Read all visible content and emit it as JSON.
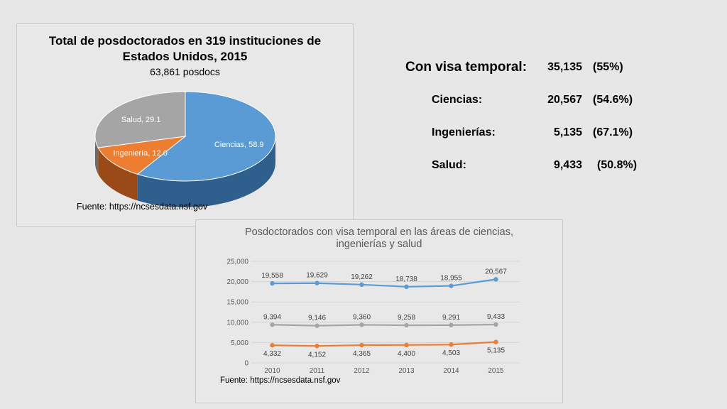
{
  "pie_panel": {
    "title_line1": "Total de posdoctorados en 319 instituciones de",
    "title_line2": "Estados Unidos, 2015",
    "subtitle": "63,861 posdocs",
    "source": "Fuente: https://ncsesdata.nsf.gov"
  },
  "line_panel": {
    "title_line1": "Posdoctorados con visa temporal en las áreas de ciencias,",
    "title_line2": "ingenierías y salud",
    "source": "Fuente: https://ncsesdata.nsf.gov"
  },
  "stats": {
    "main_label": "Con visa temporal:",
    "main_value": "35,135",
    "main_pct": "(55%)",
    "rows": [
      {
        "label": "Ciencias:",
        "value": "20,567",
        "pct": "(54.6%)"
      },
      {
        "label": "Ingenierías:",
        "value": "5,135",
        "pct": "(67.1%)"
      },
      {
        "label": "Salud:",
        "value": "9,433",
        "pct": "(50.8%)"
      }
    ]
  },
  "chart_data": [
    {
      "type": "pie",
      "title": "Total de posdoctorados en 319 instituciones de Estados Unidos, 2015",
      "subtitle": "63,861 posdocs",
      "slices": [
        {
          "name": "Ciencias",
          "value": 58.9,
          "label": "Ciencias, 58.9",
          "color": "#5b9bd5",
          "dark": "#2f5f8d"
        },
        {
          "name": "Ingeniería",
          "value": 12.0,
          "label": "Ingeniería, 12.0",
          "color": "#ed7d31",
          "dark": "#9a4a17"
        },
        {
          "name": "Salud",
          "value": 29.1,
          "label": "Salud, 29.1",
          "color": "#a5a5a5",
          "dark": "#6b6b6b"
        }
      ]
    },
    {
      "type": "line",
      "title": "Posdoctorados con visa temporal en las áreas de ciencias, ingenierías y salud",
      "x": [
        2010,
        2011,
        2012,
        2013,
        2014,
        2015
      ],
      "ylim": [
        0,
        25000
      ],
      "yticks": [
        0,
        5000,
        10000,
        15000,
        20000,
        25000
      ],
      "ytick_labels": [
        "0",
        "5,000",
        "10,000",
        "15,000",
        "20,000",
        "25,000"
      ],
      "grid": true,
      "series": [
        {
          "values": [
            19558,
            19629,
            19262,
            18738,
            18955,
            20567
          ],
          "labels": [
            "19,558",
            "19,629",
            "19,262",
            "18,738",
            "18,955",
            "20,567"
          ],
          "label_position": "above",
          "color": "#5b9bd5"
        },
        {
          "values": [
            9394,
            9146,
            9360,
            9258,
            9291,
            9433
          ],
          "labels": [
            "9,394",
            "9,146",
            "9,360",
            "9,258",
            "9,291",
            "9,433"
          ],
          "label_position": "above",
          "color": "#a5a5a5"
        },
        {
          "values": [
            4332,
            4152,
            4365,
            4400,
            4503,
            5135
          ],
          "labels": [
            "4,332",
            "4,152",
            "4,365",
            "4,400",
            "4,503",
            "5,135"
          ],
          "label_position": "below",
          "color": "#ed7d31"
        }
      ]
    }
  ]
}
